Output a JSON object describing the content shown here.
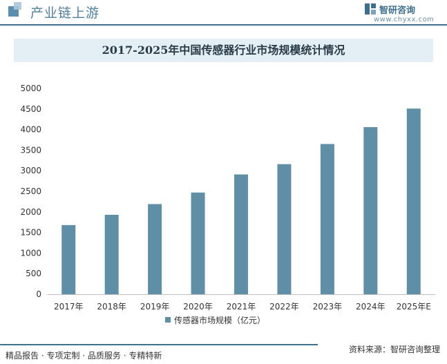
{
  "header": {
    "title": "产业链上游"
  },
  "brand": {
    "name": "智研咨询",
    "url": "www.chyxx.com"
  },
  "footer": {
    "left": "精品报告 · 专项定制 · 品质服务 · 专精特新",
    "source": "资料来源：智研咨询整理"
  },
  "colors": {
    "bar": "#5f8fa6",
    "accent": "#3f6f8f",
    "title_bg": "#e3eef5"
  },
  "chart_data": {
    "type": "bar",
    "title": "2017-2025年中国传感器行业市场规模统计情况",
    "categories": [
      "2017年",
      "2018年",
      "2019年",
      "2020年",
      "2021年",
      "2022年",
      "2023年",
      "2024年",
      "2025年E"
    ],
    "series": [
      {
        "name": "传感器市场规模（亿元）",
        "values": [
          1680,
          1930,
          2190,
          2470,
          2910,
          3160,
          3650,
          4060,
          4510
        ]
      }
    ],
    "ylim": [
      0,
      5000
    ],
    "yticks": [
      0,
      500,
      1000,
      1500,
      2000,
      2500,
      3000,
      3500,
      4000,
      4500,
      5000
    ],
    "xlabel": "",
    "ylabel": "",
    "grid": false,
    "legend": "bottom-center"
  }
}
